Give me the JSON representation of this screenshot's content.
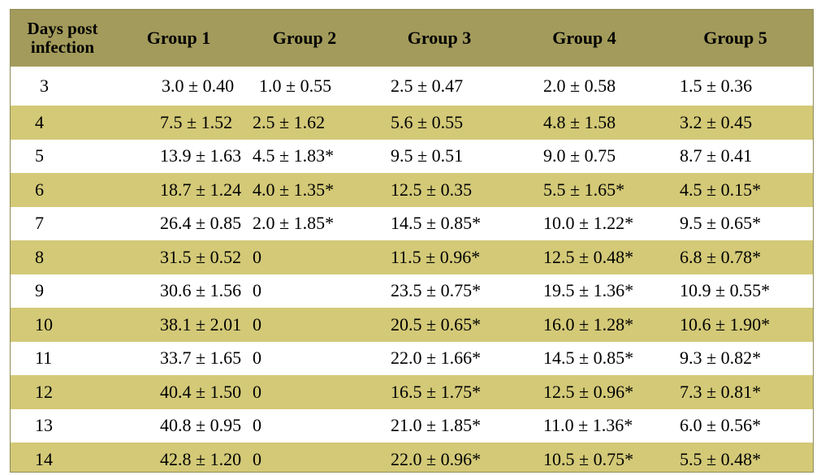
{
  "header": {
    "days_label_line1": "Days post",
    "days_label_line2": "infection",
    "groups": [
      "Group 1",
      "Group 2",
      "Group 3",
      "Group 4",
      "Group 5"
    ]
  },
  "colors": {
    "header_bg": "#a39b5b",
    "stripe_bg": "#d3c977",
    "row_bg": "#ffffff"
  },
  "rows": [
    {
      "day": "3",
      "values": [
        "3.0 ± 0.40",
        "1.0 ± 0.55",
        "2.5 ± 0.47",
        "2.0 ± 0.58",
        "1.5 ± 0.36"
      ]
    },
    {
      "day": "4",
      "values": [
        "7.5 ± 1.52",
        "2.5 ± 1.62",
        "5.6 ± 0.55",
        "4.8 ± 1.58",
        "3.2 ± 0.45"
      ]
    },
    {
      "day": "5",
      "values": [
        "13.9 ± 1.63",
        "4.5 ± 1.83*",
        "9.5 ± 0.51",
        "9.0 ± 0.75",
        "8.7 ± 0.41"
      ]
    },
    {
      "day": "6",
      "values": [
        "18.7 ± 1.24",
        "4.0 ± 1.35*",
        "12.5 ± 0.35",
        "5.5 ± 1.65*",
        "4.5 ± 0.15*"
      ]
    },
    {
      "day": "7",
      "values": [
        "26.4 ± 0.85",
        "2.0 ± 1.85*",
        "14.5 ± 0.85*",
        "10.0 ± 1.22*",
        "9.5 ± 0.65*"
      ]
    },
    {
      "day": "8",
      "values": [
        "31.5 ± 0.52",
        "0",
        "11.5 ± 0.96*",
        "12.5 ± 0.48*",
        "6.8 ± 0.78*"
      ]
    },
    {
      "day": "9",
      "values": [
        "30.6 ± 1.56",
        "0",
        "23.5 ± 0.75*",
        "19.5 ± 1.36*",
        "10.9 ± 0.55*"
      ]
    },
    {
      "day": "10",
      "values": [
        "38.1 ± 2.01",
        "0",
        "20.5 ± 0.65*",
        "16.0 ± 1.28*",
        "10.6 ± 1.90*"
      ]
    },
    {
      "day": "11",
      "values": [
        "33.7 ± 1.65",
        "0",
        "22.0 ± 1.66*",
        "14.5 ± 0.85*",
        "9.3 ± 0.82*"
      ]
    },
    {
      "day": "12",
      "values": [
        "40.4 ± 1.50",
        "0",
        "16.5 ± 1.75*",
        "12.5 ± 0.96*",
        "7.3 ± 0.81*"
      ]
    },
    {
      "day": "13",
      "values": [
        "40.8 ± 0.95",
        "0",
        "21.0 ± 1.85*",
        "11.0 ± 1.36*",
        "6.0 ± 0.56*"
      ]
    },
    {
      "day": "14",
      "values": [
        "42.8 ± 1.20",
        "0",
        "22.0 ± 0.96*",
        "10.5 ± 0.75*",
        "5.5 ± 0.48*"
      ]
    }
  ]
}
